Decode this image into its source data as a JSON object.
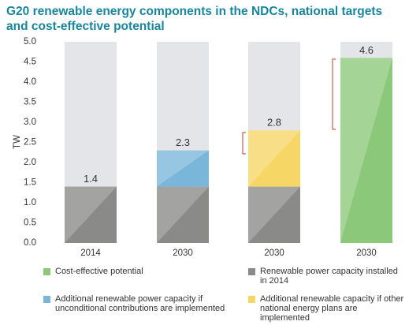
{
  "chart_data": {
    "type": "stacked_bar",
    "title": "G20 renewable energy components in the NDCs, national targets and cost-effective potential",
    "y_label": "TW",
    "categories": [
      "2014",
      "2030",
      "2030",
      "2030"
    ],
    "series": [
      {
        "name": "Renewable power capacity installed in 2014",
        "color": "#8a8b88",
        "values": [
          1.4,
          1.4,
          1.4,
          null
        ]
      },
      {
        "name": "Additional renewable power capacity if unconditional contributions are implemented",
        "color": "#79b6da",
        "values": [
          null,
          0.9,
          null,
          null
        ]
      },
      {
        "name": "Additional renewable capacity if other national energy plans are implemented",
        "color": "#f6d766",
        "values": [
          null,
          null,
          1.4,
          null
        ]
      },
      {
        "name": "Cost-effective potential",
        "color": "#8cc87a",
        "values": [
          null,
          null,
          null,
          4.6
        ]
      }
    ],
    "totals": [
      1.4,
      2.3,
      2.8,
      4.6
    ],
    "ylim": [
      0,
      5
    ],
    "yticks": [
      {
        "value": 0,
        "label": "0.0"
      },
      0.5,
      {
        "value": 1,
        "label": "1.0"
      },
      1.5,
      {
        "value": 2,
        "label": "2.0"
      },
      2.5,
      {
        "value": 3,
        "label": "3.0"
      },
      3.5,
      {
        "value": 4,
        "label": "4.0"
      },
      4.5,
      {
        "value": 5,
        "label": "5.0"
      }
    ],
    "background_color": "#e4e5e9"
  }
}
